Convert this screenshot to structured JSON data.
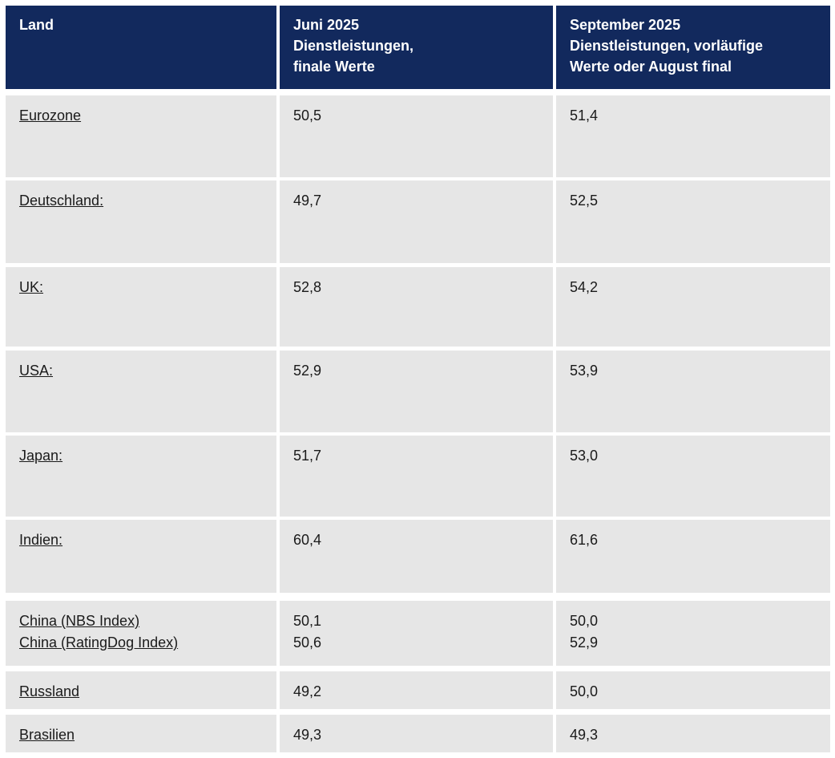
{
  "table": {
    "header": {
      "land": "Land",
      "juni": "Juni 2025\nDienstleistungen,\nfinale Werte",
      "september": "September 2025\nDienstleistungen, vorläufige\nWerte oder August final"
    },
    "rows": [
      {
        "land": "Eurozone",
        "juni": "50,5",
        "september": "51,4"
      },
      {
        "land": "Deutschland:",
        "juni": "49,7",
        "september": "52,5"
      },
      {
        "land": "UK:",
        "juni": "52,8",
        "september": "54,2"
      },
      {
        "land": "USA:",
        "juni": "52,9",
        "september": "53,9"
      },
      {
        "land": "Japan:",
        "juni": "51,7",
        "september": "53,0"
      },
      {
        "land": "Indien:",
        "juni": "60,4",
        "september": "61,6"
      },
      {
        "land": "China (NBS Index)\nChina (RatingDog Index)",
        "juni": "50,1\n50,6",
        "september": "50,0\n52,9"
      },
      {
        "land": "Russland",
        "juni": "49,2",
        "september": "50,0"
      },
      {
        "land": "Brasilien",
        "juni": "49,3",
        "september": "49,3"
      }
    ]
  },
  "colors": {
    "header_bg": "#12295d",
    "header_text": "#ffffff",
    "row_bg": "#e6e6e6",
    "body_text": "#1a1a1a",
    "gap": "#ffffff"
  },
  "chart_data": {
    "type": "table",
    "title": "",
    "columns": [
      "Land",
      "Juni 2025 Dienstleistungen, finale Werte",
      "September 2025 Dienstleistungen, vorläufige Werte oder August final"
    ],
    "rows": [
      {
        "land": "Eurozone",
        "juni_2025": 50.5,
        "september_2025": 51.4
      },
      {
        "land": "Deutschland",
        "juni_2025": 49.7,
        "september_2025": 52.5
      },
      {
        "land": "UK",
        "juni_2025": 52.8,
        "september_2025": 54.2
      },
      {
        "land": "USA",
        "juni_2025": 52.9,
        "september_2025": 53.9
      },
      {
        "land": "Japan",
        "juni_2025": 51.7,
        "september_2025": 53.0
      },
      {
        "land": "Indien",
        "juni_2025": 60.4,
        "september_2025": 61.6
      },
      {
        "land": "China (NBS Index)",
        "juni_2025": 50.1,
        "september_2025": 50.0
      },
      {
        "land": "China (RatingDog Index)",
        "juni_2025": 50.6,
        "september_2025": 52.9
      },
      {
        "land": "Russland",
        "juni_2025": 49.2,
        "september_2025": 50.0
      },
      {
        "land": "Brasilien",
        "juni_2025": 49.3,
        "september_2025": 49.3
      }
    ],
    "decimal_separator": ","
  }
}
